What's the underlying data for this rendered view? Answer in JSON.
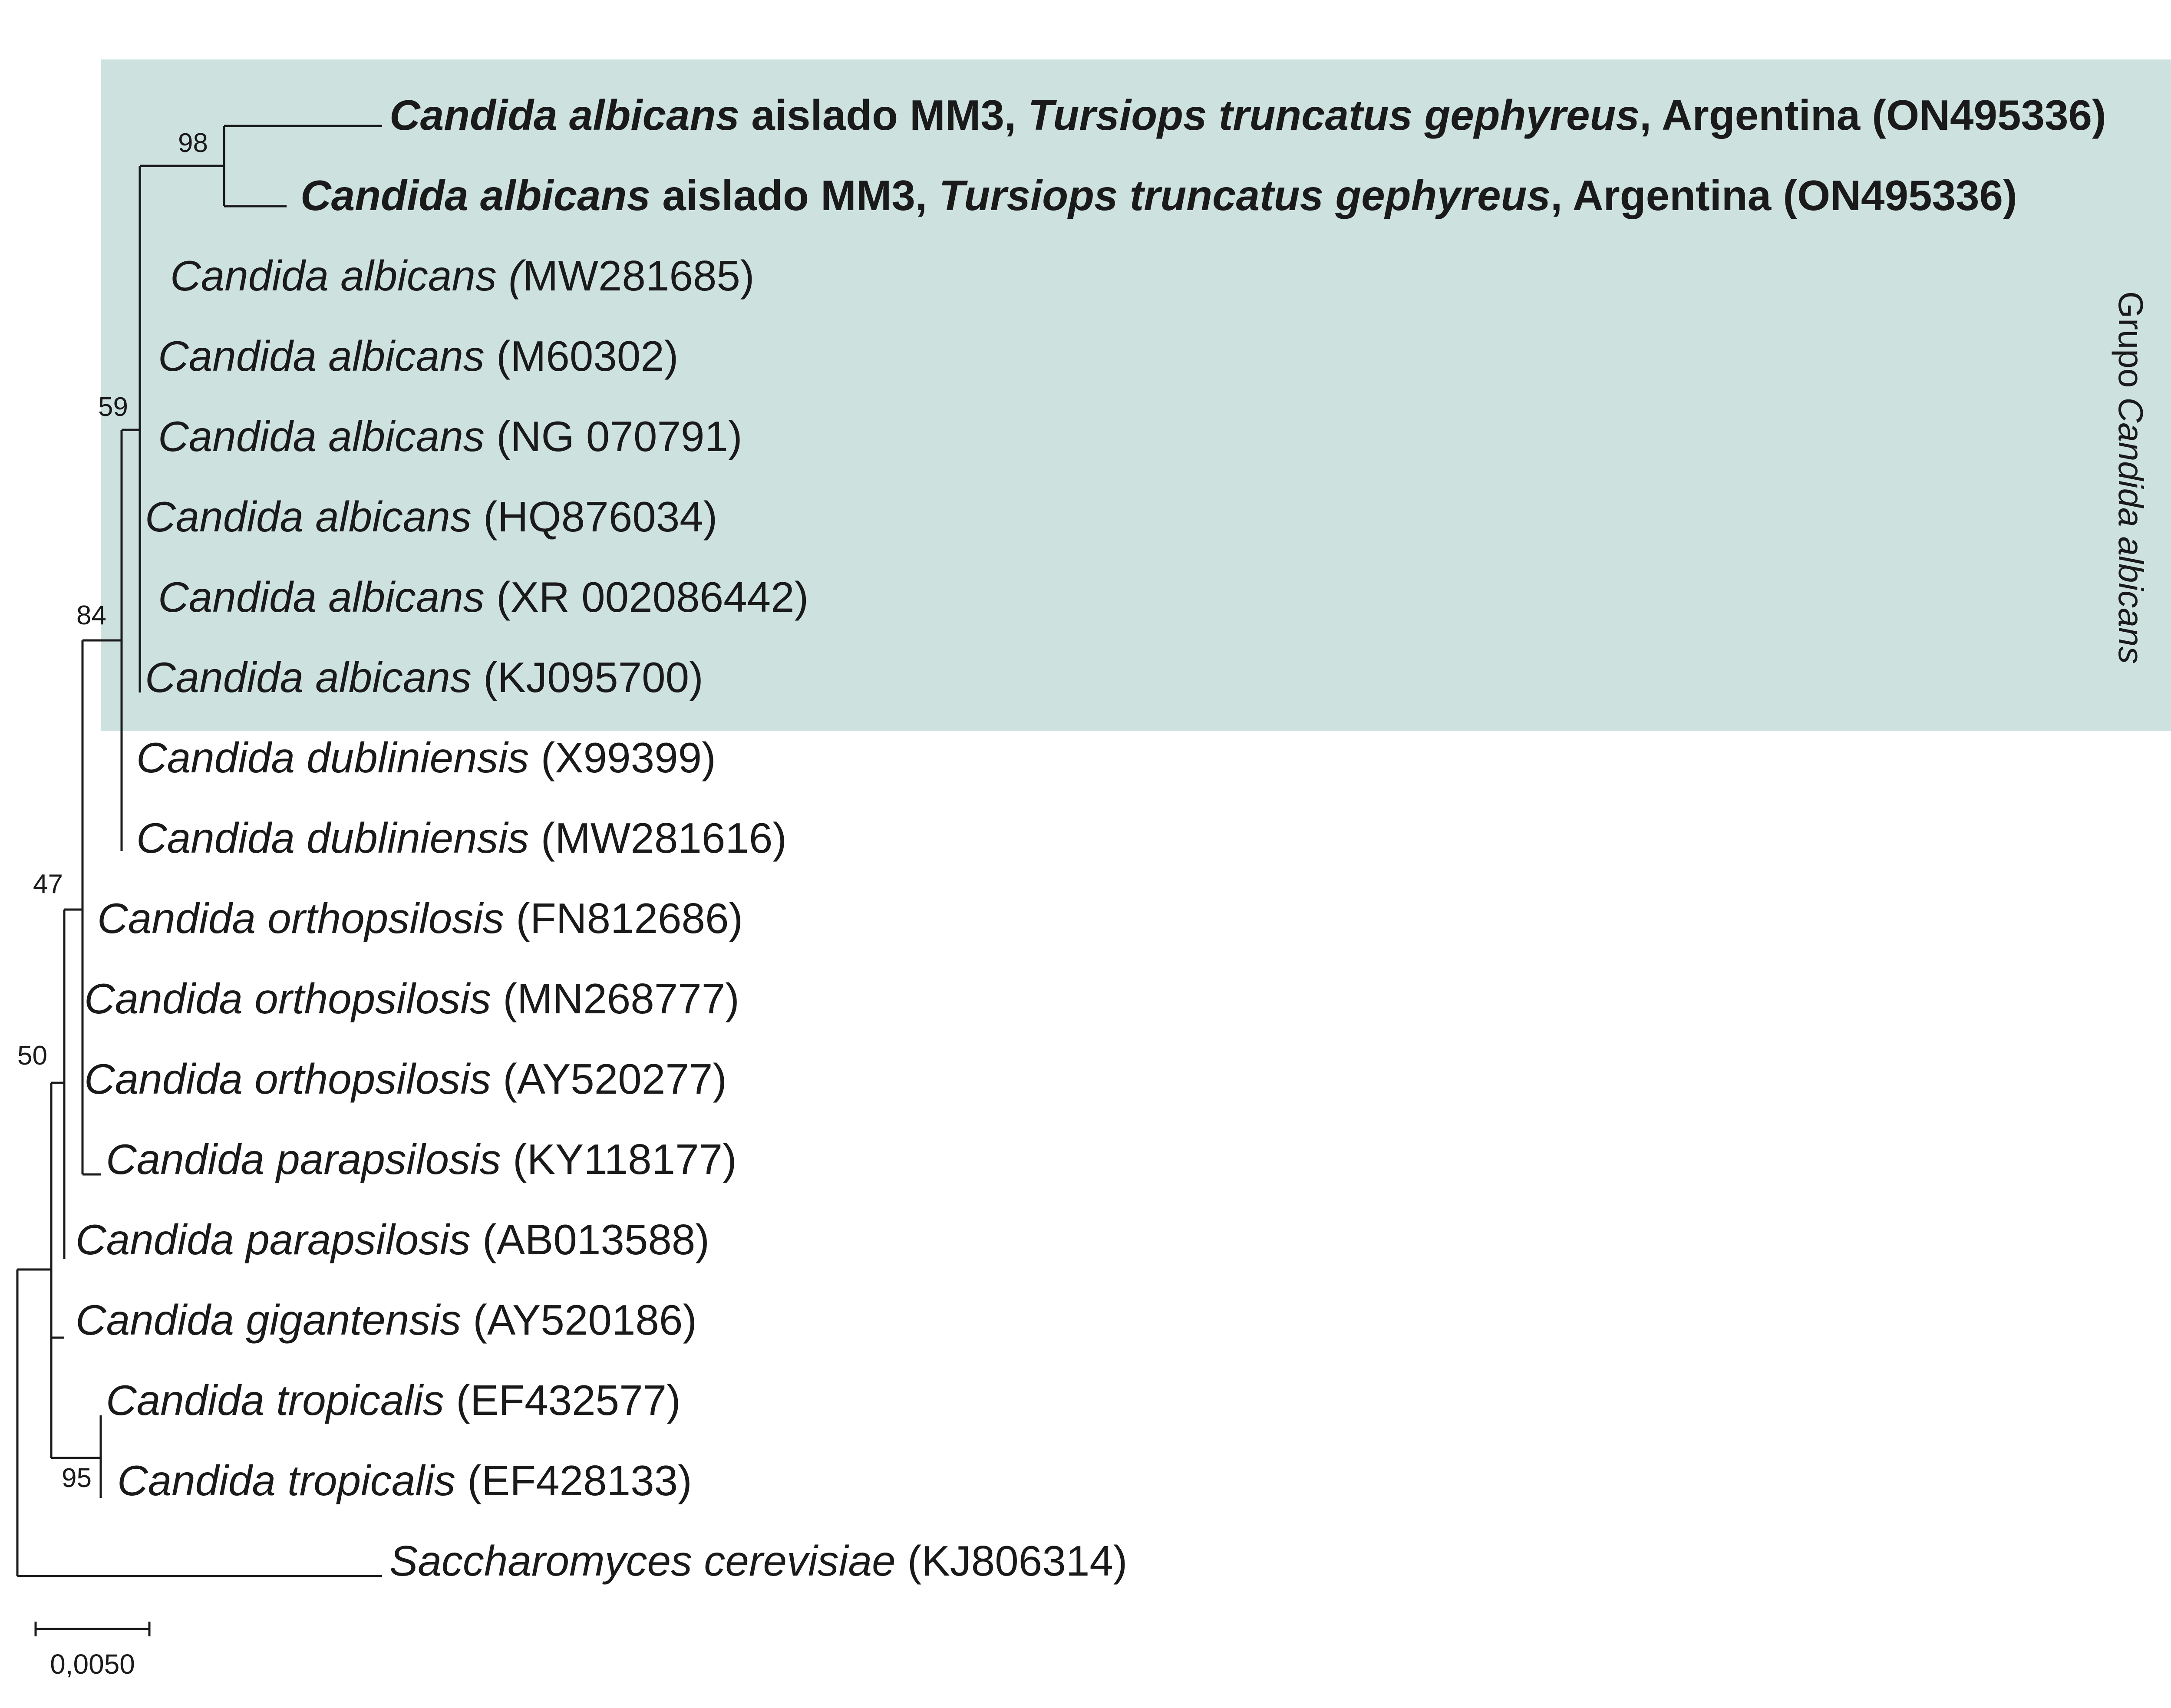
{
  "figure": {
    "highlight_color": "#cde2df",
    "group_label": {
      "prefix": "Grupo ",
      "italic": "Candida albicans"
    },
    "scale_bar": {
      "label": "0,0050"
    },
    "taxa": [
      {
        "species": "Candida albicans",
        "pre": "",
        "post": " aislado MM3, ",
        "species2": "Tursiops truncatus gephyreus",
        "post2": ", Argentina (ON495336)",
        "bold": true
      },
      {
        "species": "Candida albicans",
        "pre": "",
        "post": " aislado MM3, ",
        "species2": "Tursiops truncatus gephyreus",
        "post2": ", Argentina (ON495336)",
        "bold": true
      },
      {
        "species": "Candida albicans (",
        "pre": "",
        "post": "MW281685)",
        "bold": false
      },
      {
        "species": "Candida albicans",
        "pre": "",
        "post": " (M60302)",
        "bold": false
      },
      {
        "species": "Candida albicans",
        "pre": "",
        "post": " (NG 070791)",
        "bold": false
      },
      {
        "species": "Candida albicans",
        "pre": "",
        "post": " (HQ876034)",
        "bold": false
      },
      {
        "species": "Candida albicans",
        "pre": "",
        "post": " (XR 002086442)",
        "bold": false
      },
      {
        "species": "Candida albicans",
        "pre": "",
        "post": "  (KJ095700)",
        "bold": false
      },
      {
        "species": "Candida dubliniensis",
        "pre": "",
        "post": " (X99399)",
        "bold": false
      },
      {
        "species": "Candida dubliniensis",
        "pre": "",
        "post": " (MW281616)",
        "bold": false
      },
      {
        "species": "Candida orthopsilosis",
        "pre": "",
        "post": "  (FN812686)",
        "bold": false
      },
      {
        "species": "Candida orthopsilosis",
        "pre": "",
        "post": " (MN268777)",
        "bold": false
      },
      {
        "species": "Candida orthopsilosis",
        "pre": "",
        "post": " (AY520277)",
        "bold": false
      },
      {
        "species": "Candida parapsilosis",
        "pre": "",
        "post": " (KY118177)",
        "bold": false
      },
      {
        "species": "Candida parapsilosis",
        "pre": "",
        "post": "  (AB013588)",
        "bold": false
      },
      {
        "species": "Candida gigantensis",
        "pre": "",
        "post": " (AY520186)",
        "bold": false
      },
      {
        "species": "Candida tropicalis",
        "pre": "",
        "post": " (EF432577)",
        "bold": false
      },
      {
        "species": "Candida tropicalis",
        "pre": "",
        "post": " (EF428133)",
        "bold": false
      },
      {
        "species": "Saccharomyces cerevisiae",
        "pre": "",
        "post": " (KJ806314)",
        "bold": false
      }
    ],
    "bootstrap": [
      "98",
      "59",
      "84",
      "47",
      "50",
      "95"
    ]
  }
}
